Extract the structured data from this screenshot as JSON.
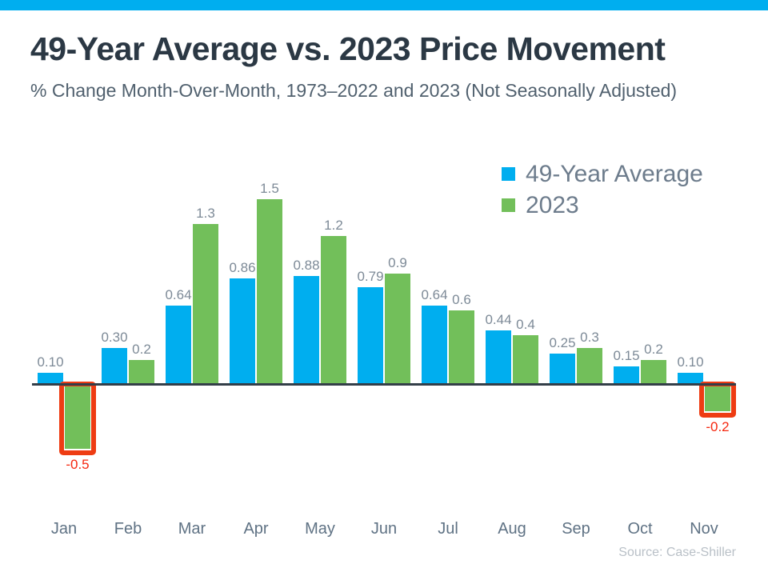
{
  "accent": {
    "topbar_color": "#00AEEF"
  },
  "header": {
    "title": "49-Year Average vs. 2023 Price Movement",
    "subtitle": "% Change Month-Over-Month, 1973–2022 and 2023 (Not Seasonally Adjusted)"
  },
  "legend": {
    "items": [
      {
        "label": "49-Year Average",
        "color": "#00AEEF"
      },
      {
        "label": "2023",
        "color": "#72BF5A"
      }
    ]
  },
  "chart_data": {
    "type": "bar",
    "categories": [
      "Jan",
      "Feb",
      "Mar",
      "Apr",
      "May",
      "Jun",
      "Jul",
      "Aug",
      "Sep",
      "Oct",
      "Nov"
    ],
    "series": [
      {
        "name": "49-Year Average",
        "color": "#00AEEF",
        "values": [
          0.1,
          0.3,
          0.64,
          0.86,
          0.88,
          0.79,
          0.64,
          0.44,
          0.25,
          0.15,
          0.1
        ],
        "labels": [
          "0.10",
          "0.30",
          "0.64",
          "0.86",
          "0.88",
          "0.79",
          "0.64",
          "0.44",
          "0.25",
          "0.15",
          "0.10"
        ]
      },
      {
        "name": "2023",
        "color": "#72BF5A",
        "values": [
          -0.5,
          0.2,
          1.3,
          1.5,
          1.2,
          0.9,
          0.6,
          0.4,
          0.3,
          0.2,
          -0.2
        ],
        "labels": [
          "-0.5",
          "0.2",
          "1.3",
          "1.5",
          "1.2",
          "0.9",
          "0.6",
          "0.4",
          "0.3",
          "0.2",
          "-0.2"
        ]
      }
    ],
    "title": "49-Year Average vs. 2023 Price Movement",
    "xlabel": "",
    "ylabel": "% Change Month-Over-Month",
    "ylim": [
      -0.6,
      1.6
    ],
    "grid": false,
    "legend_position": "top-right",
    "negative_highlight": {
      "months": [
        "Jan",
        "Nov"
      ],
      "box_color": "#EE3C13",
      "label_color": "#F5270F"
    }
  },
  "footer": {
    "source": "Source: Case-Shiller"
  }
}
